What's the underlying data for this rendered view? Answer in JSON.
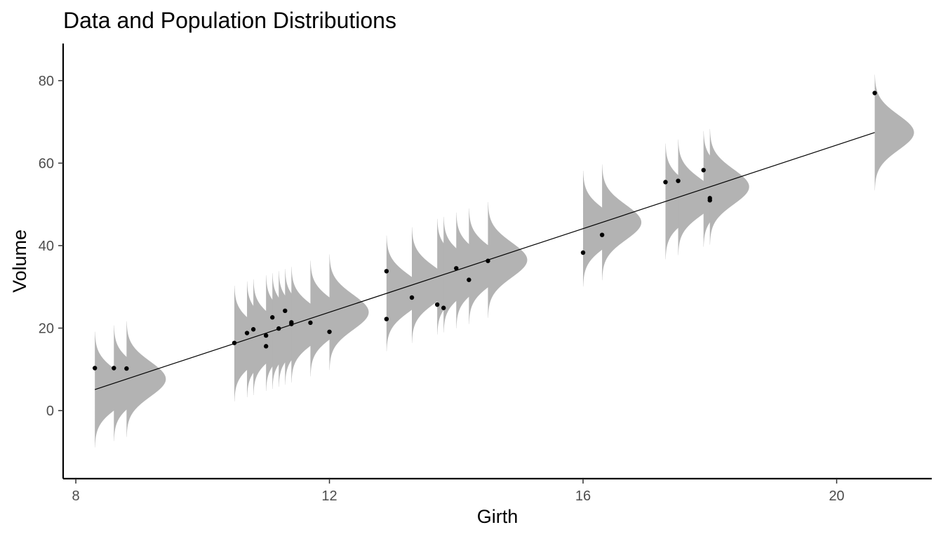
{
  "chart_data": {
    "type": "scatter",
    "title": "Data and Population Distributions",
    "xlabel": "Girth",
    "ylabel": "Volume",
    "xlim": [
      7.8,
      21.5
    ],
    "ylim": [
      -16.5,
      89
    ],
    "x_ticks": [
      8,
      12,
      16,
      20
    ],
    "y_ticks": [
      0,
      20,
      40,
      60,
      80
    ],
    "grid": false,
    "legend": "none",
    "colors": {
      "density": "#b3b3b3",
      "points": "#000000",
      "line": "#000000"
    },
    "points": [
      {
        "x": 8.3,
        "y": 10.3
      },
      {
        "x": 8.6,
        "y": 10.3
      },
      {
        "x": 8.8,
        "y": 10.2
      },
      {
        "x": 10.5,
        "y": 16.4
      },
      {
        "x": 10.7,
        "y": 18.8
      },
      {
        "x": 10.8,
        "y": 19.7
      },
      {
        "x": 11.0,
        "y": 15.6
      },
      {
        "x": 11.0,
        "y": 18.2
      },
      {
        "x": 11.1,
        "y": 22.6
      },
      {
        "x": 11.2,
        "y": 19.9
      },
      {
        "x": 11.3,
        "y": 24.2
      },
      {
        "x": 11.4,
        "y": 21.0
      },
      {
        "x": 11.4,
        "y": 21.4
      },
      {
        "x": 11.7,
        "y": 21.3
      },
      {
        "x": 12.0,
        "y": 19.1
      },
      {
        "x": 12.9,
        "y": 22.2
      },
      {
        "x": 12.9,
        "y": 33.8
      },
      {
        "x": 13.3,
        "y": 27.4
      },
      {
        "x": 13.7,
        "y": 25.7
      },
      {
        "x": 13.8,
        "y": 24.9
      },
      {
        "x": 14.0,
        "y": 34.5
      },
      {
        "x": 14.2,
        "y": 31.7
      },
      {
        "x": 14.5,
        "y": 36.3
      },
      {
        "x": 16.0,
        "y": 38.3
      },
      {
        "x": 16.3,
        "y": 42.6
      },
      {
        "x": 17.3,
        "y": 55.4
      },
      {
        "x": 17.5,
        "y": 55.7
      },
      {
        "x": 17.9,
        "y": 58.3
      },
      {
        "x": 18.0,
        "y": 51.5
      },
      {
        "x": 18.0,
        "y": 51.0
      },
      {
        "x": 20.6,
        "y": 77.0
      }
    ],
    "regression": {
      "intercept": -36.94,
      "slope": 5.066,
      "residual_sd": 4.25
    }
  }
}
